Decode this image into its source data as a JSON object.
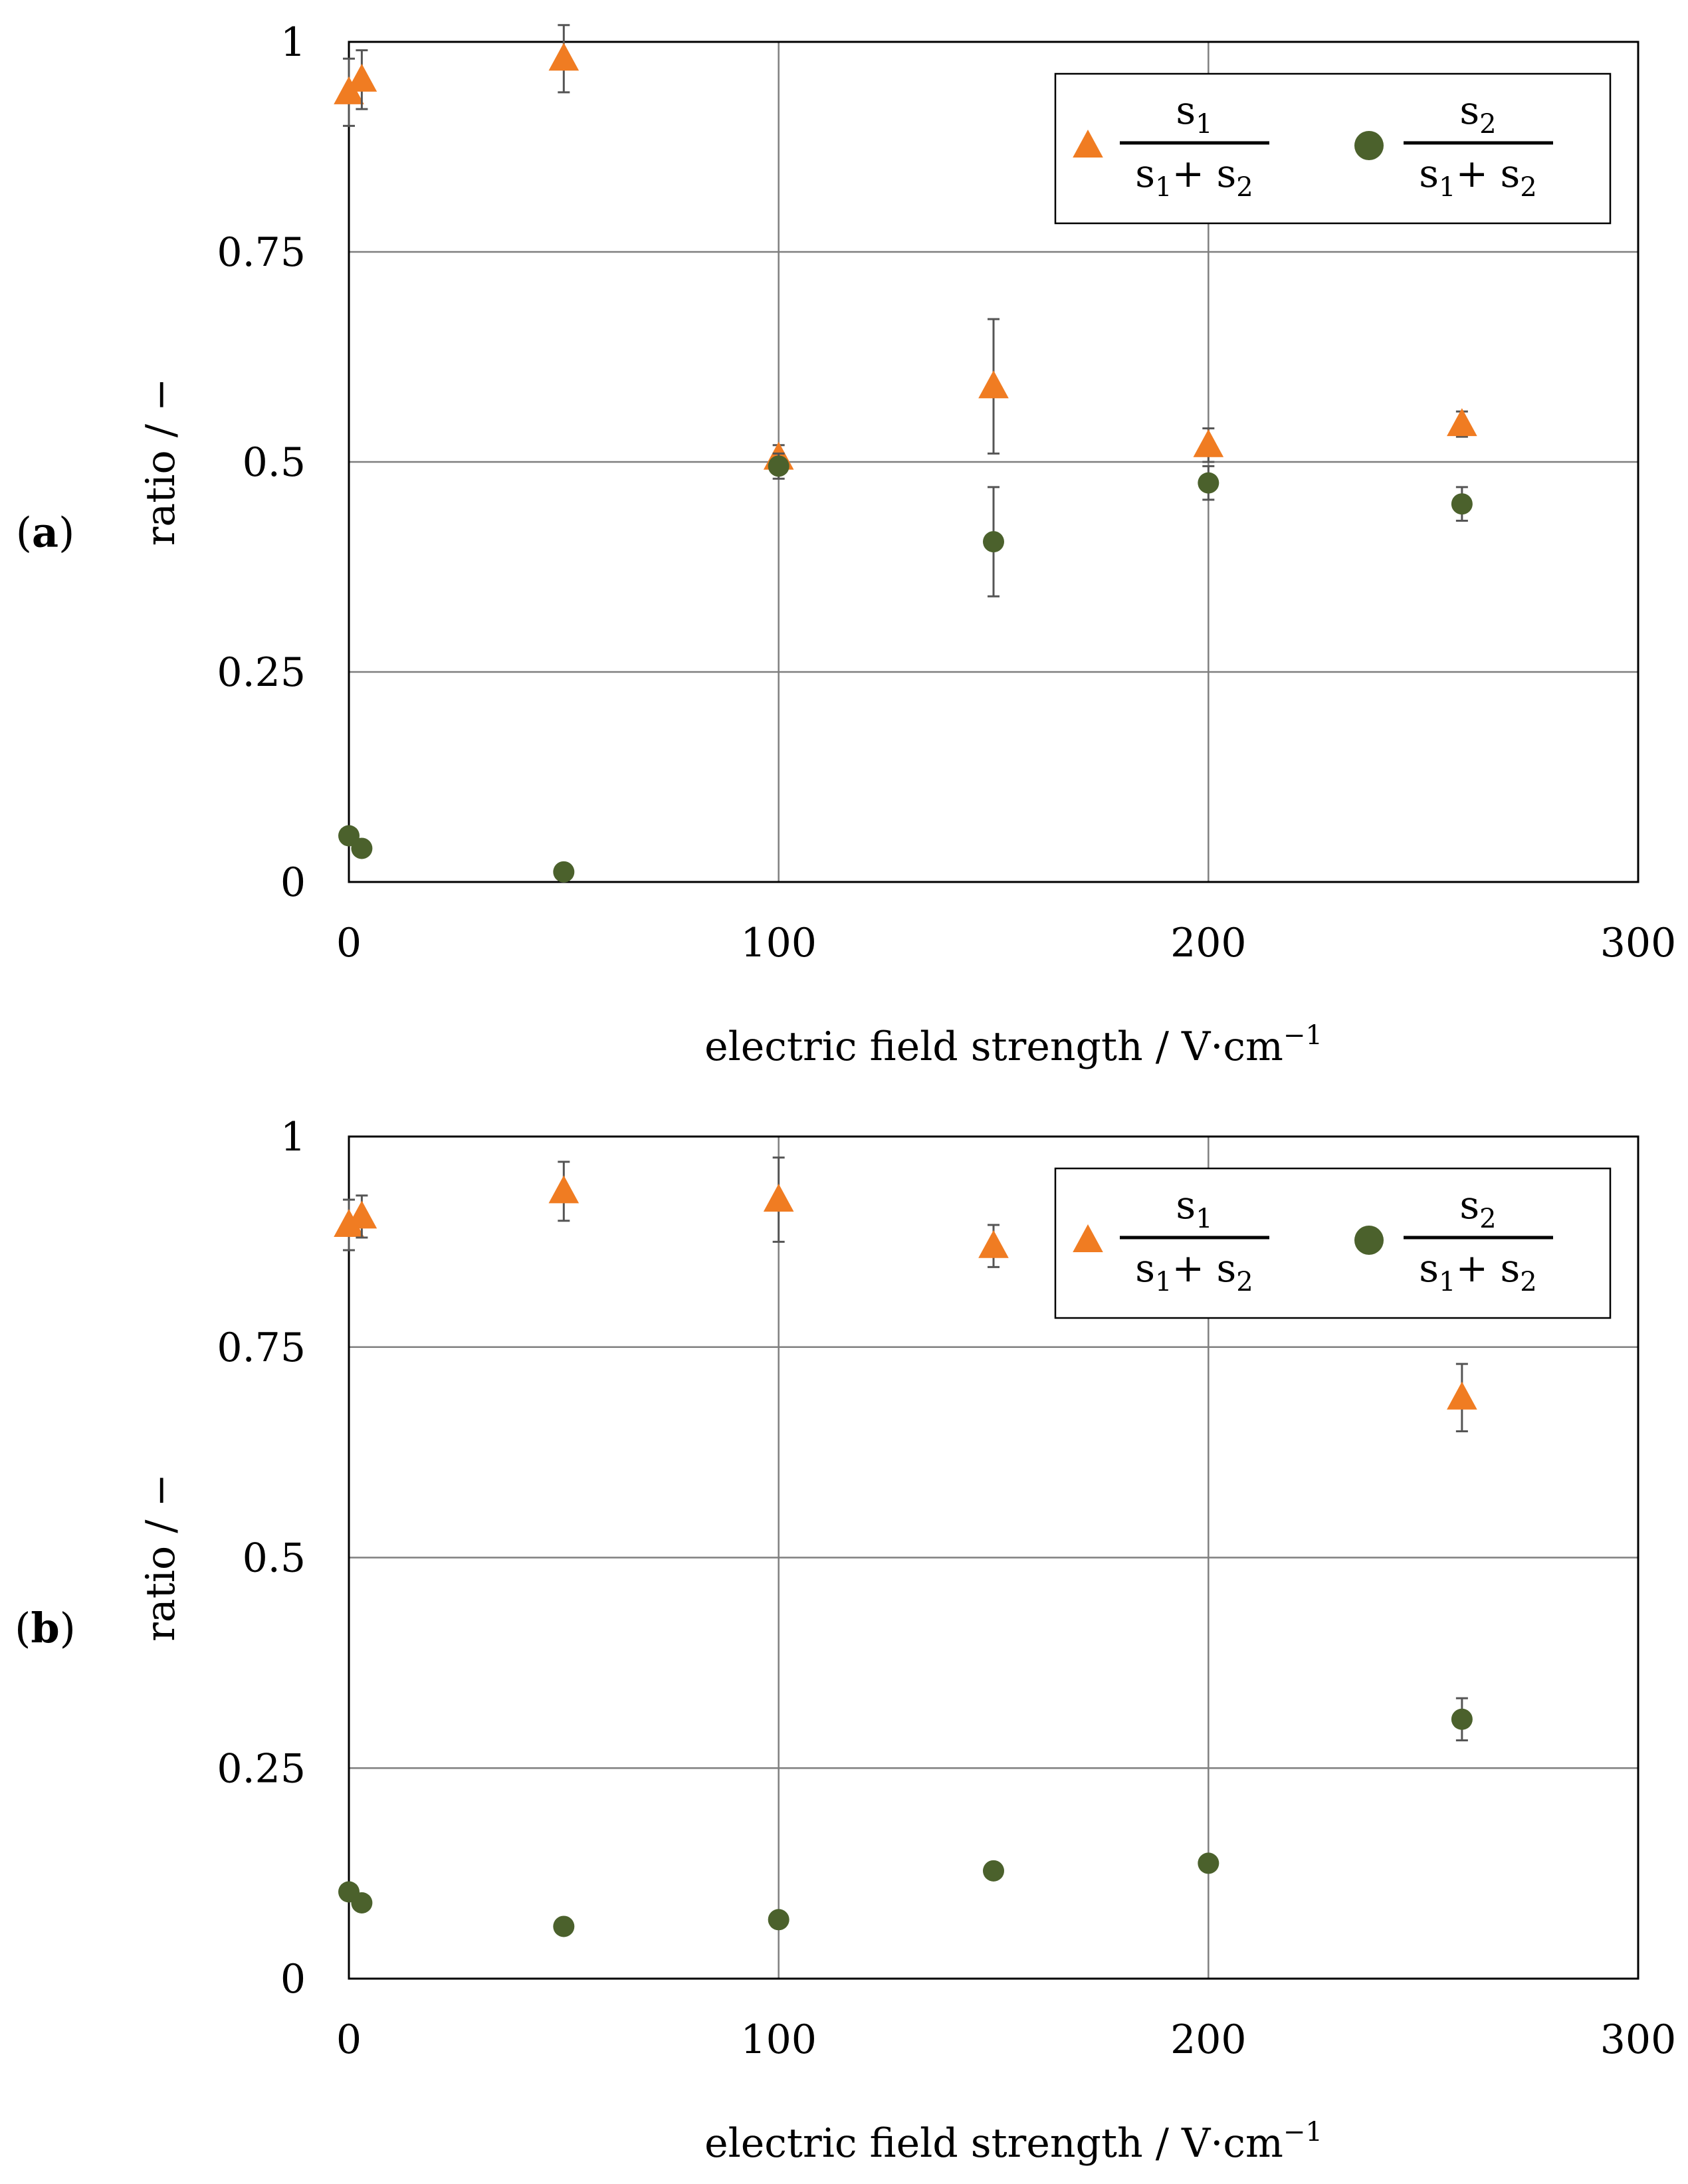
{
  "chart_data": [
    {
      "type": "scatter",
      "panel_label": "(a)",
      "panel_letter": "a",
      "xlabel": "electric field strength / V·cm",
      "xlabel_sup": "−1",
      "ylabel": "ratio / −",
      "xlim": [
        0,
        300
      ],
      "ylim": [
        0,
        1
      ],
      "xticks": [
        "0",
        "100",
        "200",
        "300"
      ],
      "yticks": [
        "0",
        "0.25",
        "0.5",
        "0.75",
        "1"
      ],
      "grid": true,
      "legend_position": "top-right",
      "series": [
        {
          "name": "s1/(s1+s2)",
          "marker": "triangle",
          "color": "#F07C22",
          "x": [
            0,
            3,
            50,
            100,
            150,
            200,
            259
          ],
          "y": [
            0.94,
            0.955,
            0.98,
            0.505,
            0.59,
            0.52,
            0.545
          ],
          "err": [
            0.04,
            0.035,
            0.04,
            0.015,
            0.08,
            0.02,
            0.015
          ]
        },
        {
          "name": "s2/(s1+s2)",
          "marker": "circle",
          "color": "#4B612C",
          "x": [
            0,
            3,
            50,
            100,
            150,
            200,
            259
          ],
          "y": [
            0.055,
            0.04,
            0.012,
            0.495,
            0.405,
            0.475,
            0.45
          ],
          "err": [
            0.0,
            0.0,
            0.0,
            0.015,
            0.065,
            0.02,
            0.02
          ]
        }
      ]
    },
    {
      "type": "scatter",
      "panel_label": "(b)",
      "panel_letter": "b",
      "xlabel": "electric field strength / V·cm",
      "xlabel_sup": "−1",
      "ylabel": "ratio / −",
      "xlim": [
        0,
        300
      ],
      "ylim": [
        0,
        1
      ],
      "xticks": [
        "0",
        "100",
        "200",
        "300"
      ],
      "yticks": [
        "0",
        "0.25",
        "0.5",
        "0.75",
        "1"
      ],
      "grid": true,
      "legend_position": "top-right",
      "series": [
        {
          "name": "s1/(s1+s2)",
          "marker": "triangle",
          "color": "#F07C22",
          "x": [
            0,
            3,
            50,
            100,
            150,
            259
          ],
          "y": [
            0.895,
            0.905,
            0.935,
            0.925,
            0.87,
            0.69
          ],
          "err": [
            0.03,
            0.025,
            0.035,
            0.05,
            0.025,
            0.04
          ]
        },
        {
          "name": "s2/(s1+s2)",
          "marker": "circle",
          "color": "#4B612C",
          "x": [
            0,
            3,
            50,
            100,
            150,
            200,
            259
          ],
          "y": [
            0.103,
            0.09,
            0.062,
            0.07,
            0.128,
            0.137,
            0.308
          ],
          "err": [
            0.0,
            0.0,
            0.0,
            0.0,
            0.0,
            0.0,
            0.025
          ]
        }
      ]
    }
  ],
  "legend_text": {
    "num1": "s",
    "num1_sub": "1",
    "num2": "s",
    "num2_sub": "2",
    "den_a": "s",
    "den_a_sub": "1",
    "den_plus": "+ s",
    "den_b_sub": "2"
  }
}
